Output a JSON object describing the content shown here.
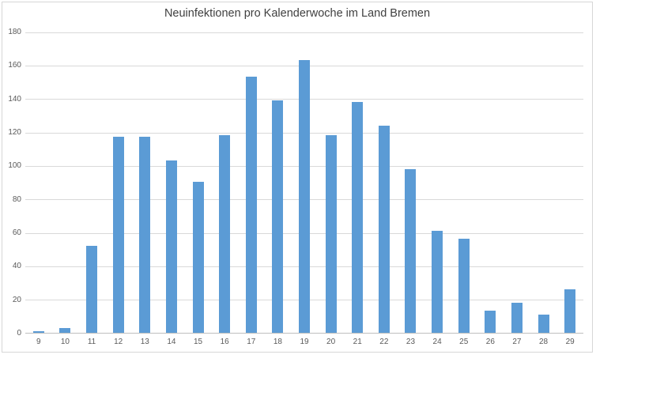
{
  "chart_data": {
    "type": "bar",
    "title": "Neuinfektionen pro Kalenderwoche im Land Bremen",
    "categories": [
      "9",
      "10",
      "11",
      "12",
      "13",
      "14",
      "15",
      "16",
      "17",
      "18",
      "19",
      "20",
      "21",
      "22",
      "23",
      "24",
      "25",
      "26",
      "27",
      "28",
      "29"
    ],
    "values": [
      1,
      3,
      52,
      117,
      117,
      103,
      90,
      118,
      153,
      139,
      163,
      118,
      138,
      124,
      98,
      61,
      56,
      13,
      18,
      11,
      26
    ],
    "xlabel": "",
    "ylabel": "",
    "ylim": [
      0,
      180
    ],
    "yticks": [
      0,
      20,
      40,
      60,
      80,
      100,
      120,
      140,
      160,
      180
    ],
    "grid": "horizontal",
    "legend": "none",
    "colors": {
      "bar_fill": "#5b9bd5",
      "gridline": "#d9d9d9",
      "axis_line": "#bfbfbf",
      "tick_label": "#595959",
      "title_text": "#404040",
      "frame_border": "#d7d7d7"
    }
  }
}
